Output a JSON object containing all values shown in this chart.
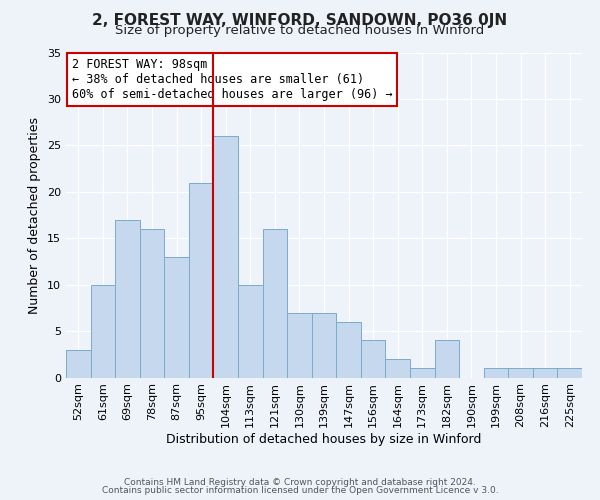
{
  "title": "2, FOREST WAY, WINFORD, SANDOWN, PO36 0JN",
  "subtitle": "Size of property relative to detached houses in Winford",
  "xlabel": "Distribution of detached houses by size in Winford",
  "ylabel": "Number of detached properties",
  "bar_labels": [
    "52sqm",
    "61sqm",
    "69sqm",
    "78sqm",
    "87sqm",
    "95sqm",
    "104sqm",
    "113sqm",
    "121sqm",
    "130sqm",
    "139sqm",
    "147sqm",
    "156sqm",
    "164sqm",
    "173sqm",
    "182sqm",
    "190sqm",
    "199sqm",
    "208sqm",
    "216sqm",
    "225sqm"
  ],
  "bar_values": [
    3,
    10,
    17,
    16,
    13,
    21,
    26,
    10,
    16,
    7,
    7,
    6,
    4,
    2,
    1,
    4,
    0,
    1,
    1,
    1,
    1
  ],
  "bar_color": "#c5d8ed",
  "bar_edge_color": "#7aaacb",
  "ylim": [
    0,
    35
  ],
  "yticks": [
    0,
    5,
    10,
    15,
    20,
    25,
    30,
    35
  ],
  "vline_x": 5.5,
  "vline_color": "#cc0000",
  "annotation_text": "2 FOREST WAY: 98sqm\n← 38% of detached houses are smaller (61)\n60% of semi-detached houses are larger (96) →",
  "annotation_box_color": "#ffffff",
  "annotation_box_edge": "#cc0000",
  "footer_line1": "Contains HM Land Registry data © Crown copyright and database right 2024.",
  "footer_line2": "Contains public sector information licensed under the Open Government Licence v 3.0.",
  "title_fontsize": 11,
  "subtitle_fontsize": 9.5,
  "axis_label_fontsize": 9,
  "tick_fontsize": 8,
  "annotation_fontsize": 8.5,
  "footer_fontsize": 6.5,
  "background_color": "#eef2f9"
}
